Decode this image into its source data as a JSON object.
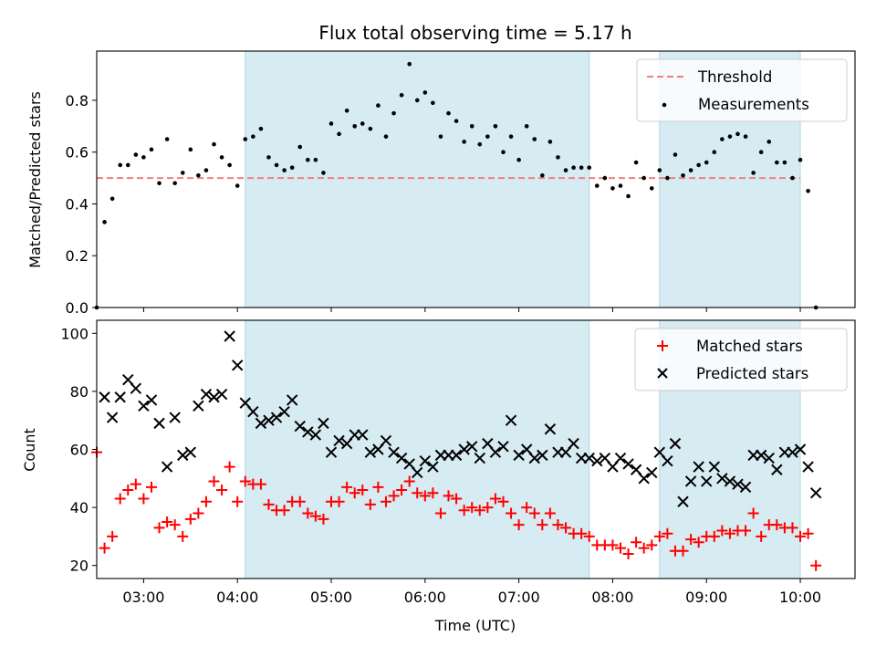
{
  "chart_data": [
    {
      "type": "scatter",
      "title": "Flux total observing time = 5.17 h",
      "xlabel": "",
      "ylabel": "Matched/Predicted stars",
      "xlim": [
        "02:30",
        "10:35"
      ],
      "ylim": [
        0,
        0.99
      ],
      "yticks": [
        0.0,
        0.2,
        0.4,
        0.6,
        0.8
      ],
      "yticklabels": [
        "0.0",
        "0.2",
        "0.4",
        "0.6",
        "0.8"
      ],
      "xticks": [
        "03:00",
        "04:00",
        "05:00",
        "06:00",
        "07:00",
        "08:00",
        "09:00",
        "10:00"
      ],
      "shaded_intervals": [
        [
          "04:05",
          "07:45"
        ],
        [
          "08:30",
          "10:00"
        ]
      ],
      "threshold": {
        "name": "Threshold",
        "value": 0.5,
        "x_range": [
          "02:30",
          "10:00"
        ],
        "color": "#f08080",
        "style": "dashed"
      },
      "legend_position": "upper right",
      "series": [
        {
          "name": "Measurements",
          "marker": "dot",
          "color": "#000000",
          "x": [
            "02:30",
            "02:35",
            "02:40",
            "02:45",
            "02:50",
            "02:55",
            "03:00",
            "03:05",
            "03:10",
            "03:15",
            "03:20",
            "03:25",
            "03:30",
            "03:35",
            "03:40",
            "03:45",
            "03:50",
            "03:55",
            "04:00",
            "04:05",
            "04:10",
            "04:15",
            "04:20",
            "04:25",
            "04:30",
            "04:35",
            "04:40",
            "04:45",
            "04:50",
            "04:55",
            "05:00",
            "05:05",
            "05:10",
            "05:15",
            "05:20",
            "05:25",
            "05:30",
            "05:35",
            "05:40",
            "05:45",
            "05:50",
            "05:55",
            "06:00",
            "06:05",
            "06:10",
            "06:15",
            "06:20",
            "06:25",
            "06:30",
            "06:35",
            "06:40",
            "06:45",
            "06:50",
            "06:55",
            "07:00",
            "07:05",
            "07:10",
            "07:15",
            "07:20",
            "07:25",
            "07:30",
            "07:35",
            "07:40",
            "07:45",
            "07:50",
            "07:55",
            "08:00",
            "08:05",
            "08:10",
            "08:15",
            "08:20",
            "08:25",
            "08:30",
            "08:35",
            "08:40",
            "08:45",
            "08:50",
            "08:55",
            "09:00",
            "09:05",
            "09:10",
            "09:15",
            "09:20",
            "09:25",
            "09:30",
            "09:35",
            "09:40",
            "09:45",
            "09:50",
            "09:55",
            "10:00",
            "10:05",
            "10:10"
          ],
          "y": [
            0.0,
            0.33,
            0.42,
            0.55,
            0.55,
            0.59,
            0.58,
            0.61,
            0.48,
            0.65,
            0.48,
            0.52,
            0.61,
            0.51,
            0.53,
            0.63,
            0.58,
            0.55,
            0.47,
            0.65,
            0.66,
            0.69,
            0.58,
            0.55,
            0.53,
            0.54,
            0.62,
            0.57,
            0.57,
            0.52,
            0.71,
            0.67,
            0.76,
            0.7,
            0.71,
            0.69,
            0.78,
            0.66,
            0.75,
            0.82,
            0.94,
            0.8,
            0.83,
            0.79,
            0.66,
            0.75,
            0.72,
            0.64,
            0.7,
            0.63,
            0.66,
            0.7,
            0.6,
            0.66,
            0.57,
            0.7,
            0.65,
            0.51,
            0.64,
            0.58,
            0.53,
            0.54,
            0.54,
            0.54,
            0.47,
            0.5,
            0.46,
            0.47,
            0.43,
            0.56,
            0.5,
            0.46,
            0.53,
            0.5,
            0.59,
            0.51,
            0.53,
            0.55,
            0.56,
            0.6,
            0.65,
            0.66,
            0.67,
            0.66,
            0.52,
            0.6,
            0.64,
            0.56,
            0.56,
            0.5,
            0.57,
            0.45,
            0.0
          ]
        }
      ]
    },
    {
      "type": "scatter",
      "title": "",
      "xlabel": "Time (UTC)",
      "ylabel": "Count",
      "xlim": [
        "02:30",
        "10:35"
      ],
      "ylim": [
        15.5,
        104.5
      ],
      "yticks": [
        20,
        40,
        60,
        80,
        100
      ],
      "yticklabels": [
        "20",
        "40",
        "60",
        "80",
        "100"
      ],
      "xticks": [
        "03:00",
        "04:00",
        "05:00",
        "06:00",
        "07:00",
        "08:00",
        "09:00",
        "10:00"
      ],
      "xticklabels": [
        "03:00",
        "04:00",
        "05:00",
        "06:00",
        "07:00",
        "08:00",
        "09:00",
        "10:00"
      ],
      "shaded_intervals": [
        [
          "04:05",
          "07:45"
        ],
        [
          "08:30",
          "10:00"
        ]
      ],
      "legend_position": "upper right",
      "series": [
        {
          "name": "Matched stars",
          "marker": "plus",
          "color": "#ff0000",
          "x": [
            "02:30",
            "02:35",
            "02:40",
            "02:45",
            "02:50",
            "02:55",
            "03:00",
            "03:05",
            "03:10",
            "03:15",
            "03:20",
            "03:25",
            "03:30",
            "03:35",
            "03:40",
            "03:45",
            "03:50",
            "03:55",
            "04:00",
            "04:05",
            "04:10",
            "04:15",
            "04:20",
            "04:25",
            "04:30",
            "04:35",
            "04:40",
            "04:45",
            "04:50",
            "04:55",
            "05:00",
            "05:05",
            "05:10",
            "05:15",
            "05:20",
            "05:25",
            "05:30",
            "05:35",
            "05:40",
            "05:45",
            "05:50",
            "05:55",
            "06:00",
            "06:05",
            "06:10",
            "06:15",
            "06:20",
            "06:25",
            "06:30",
            "06:35",
            "06:40",
            "06:45",
            "06:50",
            "06:55",
            "07:00",
            "07:05",
            "07:10",
            "07:15",
            "07:20",
            "07:25",
            "07:30",
            "07:35",
            "07:40",
            "07:45",
            "07:50",
            "07:55",
            "08:00",
            "08:05",
            "08:10",
            "08:15",
            "08:20",
            "08:25",
            "08:30",
            "08:35",
            "08:40",
            "08:45",
            "08:50",
            "08:55",
            "09:00",
            "09:05",
            "09:10",
            "09:15",
            "09:20",
            "09:25",
            "09:30",
            "09:35",
            "09:40",
            "09:45",
            "09:50",
            "09:55",
            "10:00",
            "10:05",
            "10:10"
          ],
          "y": [
            59,
            26,
            30,
            43,
            46,
            48,
            43,
            47,
            33,
            35,
            34,
            30,
            36,
            38,
            42,
            49,
            46,
            54,
            42,
            49,
            48,
            48,
            41,
            39,
            39,
            42,
            42,
            38,
            37,
            36,
            42,
            42,
            47,
            45,
            46,
            41,
            47,
            42,
            44,
            46,
            49,
            45,
            44,
            45,
            38,
            44,
            43,
            39,
            40,
            39,
            40,
            43,
            42,
            38,
            34,
            40,
            38,
            34,
            38,
            34,
            33,
            31,
            31,
            30,
            27,
            27,
            27,
            26,
            24,
            28,
            26,
            27,
            30,
            31,
            25,
            25,
            29,
            28,
            30,
            30,
            32,
            31,
            32,
            32,
            38,
            30,
            34,
            34,
            33,
            33,
            30,
            31,
            20
          ]
        },
        {
          "name": "Predicted stars",
          "marker": "x",
          "color": "#000000",
          "x": [
            "02:35",
            "02:40",
            "02:45",
            "02:50",
            "02:55",
            "03:00",
            "03:05",
            "03:10",
            "03:15",
            "03:20",
            "03:25",
            "03:30",
            "03:35",
            "03:40",
            "03:45",
            "03:50",
            "03:55",
            "04:00",
            "04:05",
            "04:10",
            "04:15",
            "04:20",
            "04:25",
            "04:30",
            "04:35",
            "04:40",
            "04:45",
            "04:50",
            "04:55",
            "05:00",
            "05:05",
            "05:10",
            "05:15",
            "05:20",
            "05:25",
            "05:30",
            "05:35",
            "05:40",
            "05:45",
            "05:50",
            "05:55",
            "06:00",
            "06:05",
            "06:10",
            "06:15",
            "06:20",
            "06:25",
            "06:30",
            "06:35",
            "06:40",
            "06:45",
            "06:50",
            "06:55",
            "07:00",
            "07:05",
            "07:10",
            "07:15",
            "07:20",
            "07:25",
            "07:30",
            "07:35",
            "07:40",
            "07:45",
            "07:50",
            "07:55",
            "08:00",
            "08:05",
            "08:10",
            "08:15",
            "08:20",
            "08:25",
            "08:30",
            "08:35",
            "08:40",
            "08:45",
            "08:50",
            "08:55",
            "09:00",
            "09:05",
            "09:10",
            "09:15",
            "09:20",
            "09:25",
            "09:30",
            "09:35",
            "09:40",
            "09:45",
            "09:50",
            "09:55",
            "10:00",
            "10:05",
            "10:10"
          ],
          "y": [
            78,
            71,
            78,
            84,
            81,
            75,
            77,
            69,
            54,
            71,
            58,
            59,
            75,
            79,
            78,
            79,
            99,
            89,
            76,
            73,
            69,
            70,
            71,
            73,
            77,
            68,
            66,
            65,
            69,
            59,
            63,
            62,
            65,
            65,
            59,
            60,
            63,
            59,
            57,
            55,
            52,
            56,
            54,
            58,
            58,
            58,
            60,
            61,
            57,
            62,
            59,
            61,
            70,
            58,
            60,
            57,
            58,
            67,
            59,
            59,
            62,
            57,
            57,
            56,
            57,
            54,
            57,
            55,
            53,
            50,
            52,
            59,
            56,
            62,
            42,
            49,
            54,
            49,
            54,
            50,
            49,
            48,
            47,
            58,
            58,
            57,
            53,
            59,
            59,
            60,
            54,
            45
          ]
        }
      ]
    }
  ]
}
